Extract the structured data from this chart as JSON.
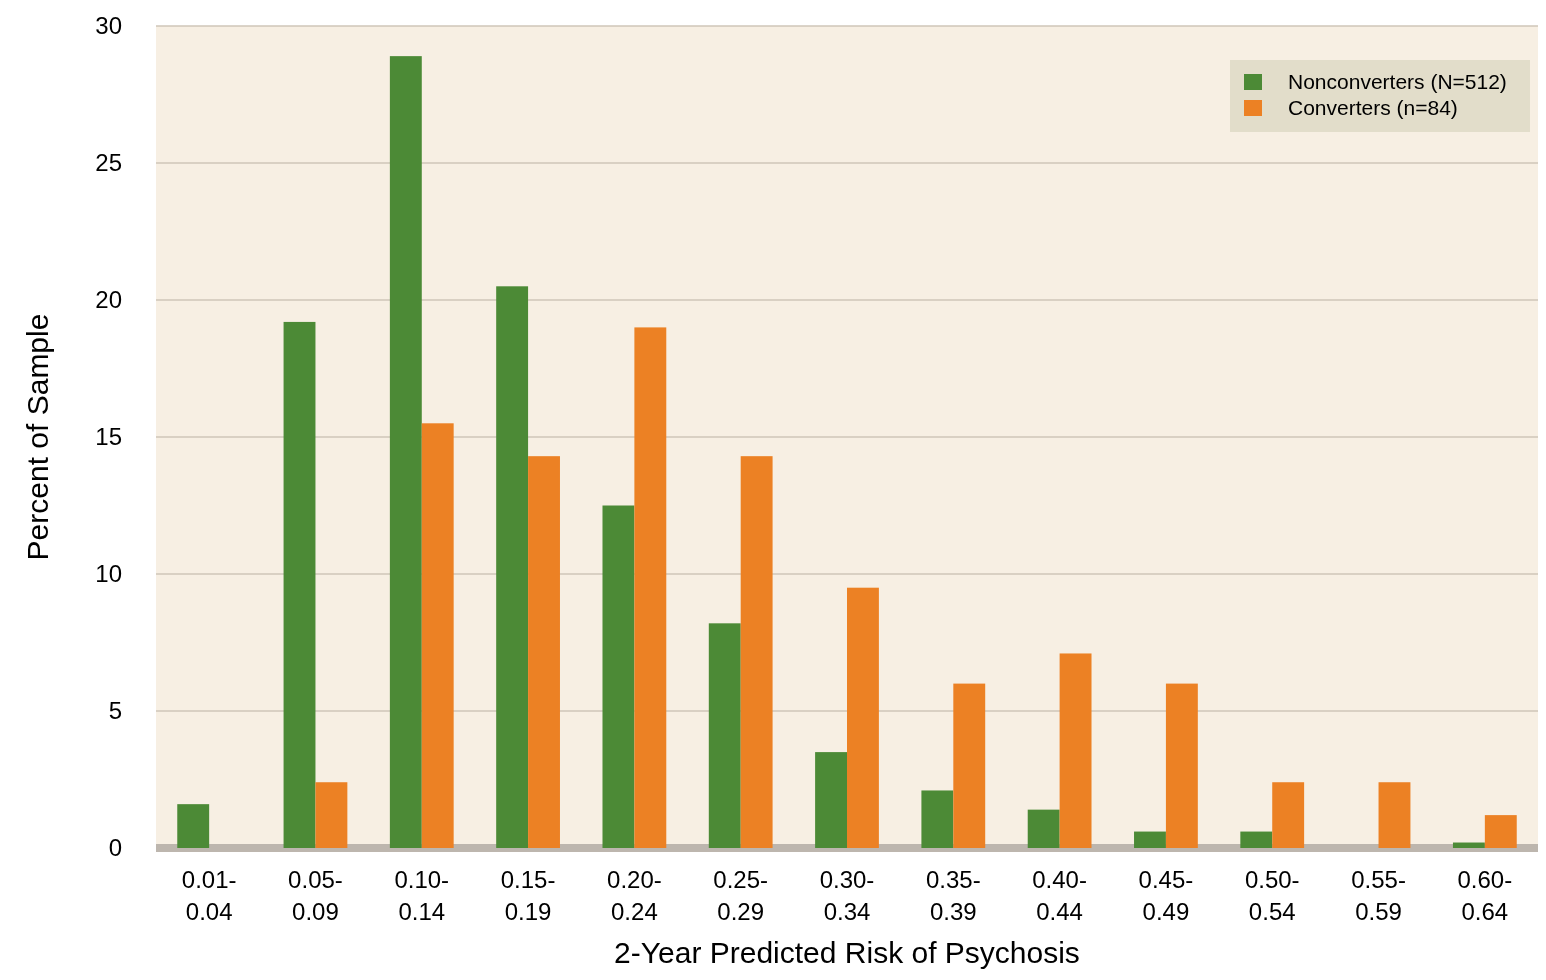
{
  "chart_data": {
    "type": "bar",
    "xlabel": "2-Year Predicted Risk of Psychosis",
    "ylabel": "Percent of Sample",
    "categories": [
      "0.01-\n0.04",
      "0.05-\n0.09",
      "0.10-\n0.14",
      "0.15-\n0.19",
      "0.20-\n0.24",
      "0.25-\n0.29",
      "0.30-\n0.34",
      "0.35-\n0.39",
      "0.40-\n0.44",
      "0.45-\n0.49",
      "0.50-\n0.54",
      "0.55-\n0.59",
      "0.60-\n0.64"
    ],
    "series": [
      {
        "name": "Nonconverters (N=512)",
        "color": "#4c8a36",
        "values": [
          1.6,
          19.2,
          28.9,
          20.5,
          12.5,
          8.2,
          3.5,
          2.1,
          1.4,
          0.6,
          0.6,
          0,
          0.2
        ]
      },
      {
        "name": "Converters (n=84)",
        "color": "#ec8124",
        "values": [
          0,
          2.4,
          15.5,
          14.3,
          19,
          14.3,
          9.5,
          6,
          7.1,
          6,
          2.4,
          2.4,
          1.2
        ]
      }
    ],
    "ylim": [
      0,
      30
    ],
    "yticks": [
      0,
      5,
      10,
      15,
      20,
      25,
      30
    ],
    "grid": "y",
    "legend": "top right"
  }
}
